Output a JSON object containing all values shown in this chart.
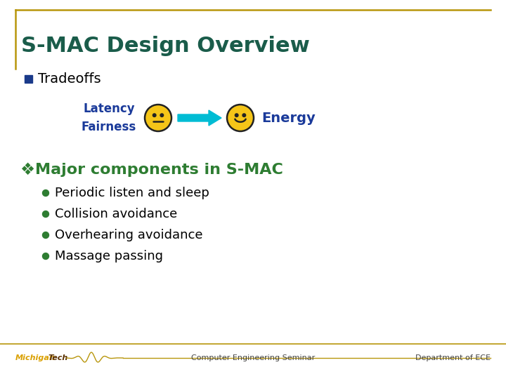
{
  "title": "S-MAC Design Overview",
  "title_color": "#1a5c4a",
  "title_fontsize": 22,
  "background_color": "#ffffff",
  "border_color": "#b8960c",
  "bullet1_text": "Tradeoffs",
  "bullet1_color": "#000000",
  "bullet1_square_color": "#1a3a8a",
  "latency_fairness_text": "Latency\nFairness",
  "energy_text": "Energy",
  "tradeoff_text_color": "#1a3a9a",
  "arrow_color": "#00bcd4",
  "smiley_color": "#f5c518",
  "smiley_outline": "#222222",
  "major_text": "Major components in S-MAC",
  "major_color": "#2e7d32",
  "major_fontsize": 16,
  "bullet_items": [
    "Periodic listen and sleep",
    "Collision avoidance",
    "Overhearing avoidance",
    "Massage passing"
  ],
  "bullet_item_color": "#000000",
  "bullet_item_fontsize": 13,
  "bullet_dot_color": "#2e7d32",
  "footer_left": "Computer Engineering Seminar",
  "footer_right": "Department of ECE",
  "footer_color": "#444444",
  "footer_fontsize": 8,
  "footer_line_color": "#b8960c",
  "tradeoff_fontsize": 12,
  "energy_fontsize": 14
}
